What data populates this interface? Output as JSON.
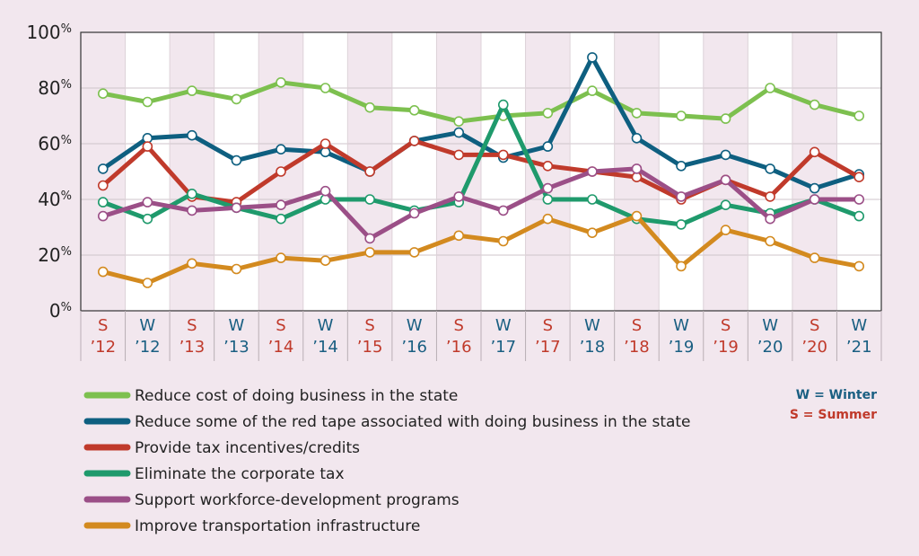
{
  "chart_data": {
    "type": "line",
    "title": "",
    "xlabel": "",
    "ylabel": "",
    "ylim": [
      0,
      100
    ],
    "y_ticks": [
      {
        "num": "0",
        "pct": "%"
      },
      {
        "num": "20",
        "pct": "%"
      },
      {
        "num": "40",
        "pct": "%"
      },
      {
        "num": "60",
        "pct": "%"
      },
      {
        "num": "80",
        "pct": "%"
      },
      {
        "num": "100",
        "pct": "%"
      }
    ],
    "categories": [
      {
        "season": "S",
        "year": "’12"
      },
      {
        "season": "W",
        "year": "’12"
      },
      {
        "season": "S",
        "year": "’13"
      },
      {
        "season": "W",
        "year": "’13"
      },
      {
        "season": "S",
        "year": "’14"
      },
      {
        "season": "W",
        "year": "’14"
      },
      {
        "season": "S",
        "year": "’15"
      },
      {
        "season": "W",
        "year": "’16"
      },
      {
        "season": "S",
        "year": "’16"
      },
      {
        "season": "W",
        "year": "’17"
      },
      {
        "season": "S",
        "year": "’17"
      },
      {
        "season": "W",
        "year": "’18"
      },
      {
        "season": "S",
        "year": "’18"
      },
      {
        "season": "W",
        "year": "’19"
      },
      {
        "season": "S",
        "year": "’19"
      },
      {
        "season": "W",
        "year": "’20"
      },
      {
        "season": "S",
        "year": "’20"
      },
      {
        "season": "W",
        "year": "’21"
      }
    ],
    "series": [
      {
        "name": "Reduce cost of doing business in the state",
        "color": "#7dc04f",
        "values": [
          78,
          75,
          79,
          76,
          82,
          80,
          73,
          72,
          68,
          70,
          71,
          79,
          71,
          70,
          69,
          80,
          74,
          70
        ]
      },
      {
        "name": "Reduce some of the red tape associated with doing business in the state",
        "color": "#0e5f80",
        "values": [
          51,
          62,
          63,
          54,
          58,
          57,
          50,
          61,
          64,
          55,
          59,
          91,
          62,
          52,
          56,
          51,
          44,
          49
        ]
      },
      {
        "name": "Provide tax incentives/credits",
        "color": "#c03a2b",
        "values": [
          45,
          59,
          41,
          39,
          50,
          60,
          50,
          61,
          56,
          56,
          52,
          50,
          48,
          40,
          47,
          41,
          57,
          48
        ]
      },
      {
        "name": "Eliminate the corporate tax",
        "color": "#1f9a6c",
        "values": [
          39,
          33,
          42,
          37,
          33,
          40,
          40,
          36,
          39,
          74,
          40,
          40,
          33,
          31,
          38,
          35,
          40,
          34
        ]
      },
      {
        "name": "Support workforce-development programs",
        "color": "#9b4f87",
        "values": [
          34,
          39,
          36,
          37,
          38,
          43,
          26,
          35,
          41,
          36,
          44,
          50,
          51,
          41,
          47,
          33,
          40,
          40
        ]
      },
      {
        "name": "Improve transportation infrastructure",
        "color": "#d38a1f",
        "values": [
          14,
          10,
          17,
          15,
          19,
          18,
          21,
          21,
          27,
          25,
          33,
          28,
          34,
          16,
          29,
          25,
          19,
          16
        ]
      }
    ],
    "season_colors": {
      "W": "#1a5f82",
      "S": "#c03a2b"
    },
    "key": [
      {
        "text": "W = Winter",
        "color": "#1a5f82"
      },
      {
        "text": "S = Summer",
        "color": "#c03a2b"
      }
    ]
  }
}
